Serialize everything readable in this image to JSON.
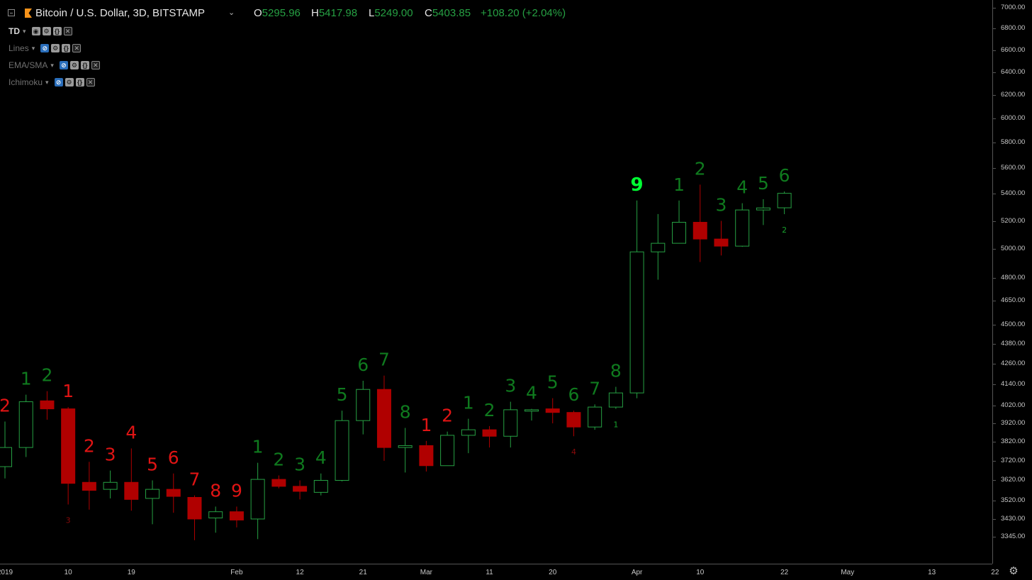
{
  "header": {
    "symbol": "Bitcoin / U.S. Dollar, 3D, BITSTAMP",
    "open_label": "O",
    "open": "5295.96",
    "high_label": "H",
    "high": "5417.98",
    "low_label": "L",
    "low": "5249.00",
    "close_label": "C",
    "close": "5403.85",
    "change": "+108.20 (+2.04%)"
  },
  "indicators": [
    {
      "name": "TD",
      "active": true
    },
    {
      "name": "Lines",
      "active": false
    },
    {
      "name": "EMA/SMA",
      "active": false
    },
    {
      "name": "Ichimoku",
      "active": false
    }
  ],
  "colors": {
    "up": "#26a043",
    "down": "#b00000",
    "count_up": "#0f7a1e",
    "count_down": "#e01414",
    "count_nine": "#00ff33"
  },
  "chart_data": {
    "type": "candlestick",
    "yscale": "log",
    "ylim": [
      3300,
      7050
    ],
    "y_ticks": [
      "7000.00",
      "6800.00",
      "6600.00",
      "6400.00",
      "6200.00",
      "6000.00",
      "5800.00",
      "5600.00",
      "5400.00",
      "5200.00",
      "5000.00",
      "4800.00",
      "4650.00",
      "4500.00",
      "4380.00",
      "4260.00",
      "4140.00",
      "4020.00",
      "3920.00",
      "3820.00",
      "3720.00",
      "3620.00",
      "3520.00",
      "3430.00",
      "3345.00"
    ],
    "x_labels": [
      "2019",
      "10",
      "19",
      "Feb",
      "12",
      "21",
      "Mar",
      "11",
      "20",
      "Apr",
      "10",
      "22",
      "May",
      "13",
      "22"
    ],
    "candles": [
      {
        "o": 3690,
        "h": 3930,
        "l": 3630,
        "c": 3790,
        "count": "2",
        "count_dir": "down"
      },
      {
        "o": 3790,
        "h": 4080,
        "l": 3740,
        "c": 4040,
        "count": "1",
        "count_dir": "up"
      },
      {
        "o": 4045,
        "h": 4100,
        "l": 3940,
        "c": 4000,
        "count": "2",
        "count_dir": "up"
      },
      {
        "o": 4000,
        "h": 4010,
        "l": 3500,
        "c": 3605,
        "count": "1",
        "count_dir": "down",
        "setup": "3",
        "setup_dir": "down"
      },
      {
        "o": 3610,
        "h": 3715,
        "l": 3475,
        "c": 3570,
        "count": "2",
        "count_dir": "down"
      },
      {
        "o": 3575,
        "h": 3670,
        "l": 3530,
        "c": 3610,
        "count": "3",
        "count_dir": "down"
      },
      {
        "o": 3610,
        "h": 3785,
        "l": 3470,
        "c": 3525,
        "count": "4",
        "count_dir": "down"
      },
      {
        "o": 3530,
        "h": 3620,
        "l": 3405,
        "c": 3575,
        "count": "5",
        "count_dir": "down"
      },
      {
        "o": 3575,
        "h": 3655,
        "l": 3460,
        "c": 3540,
        "count": "6",
        "count_dir": "down"
      },
      {
        "o": 3535,
        "h": 3545,
        "l": 3330,
        "c": 3430,
        "count": "7",
        "count_dir": "down"
      },
      {
        "o": 3435,
        "h": 3490,
        "l": 3365,
        "c": 3465,
        "count": "8",
        "count_dir": "down"
      },
      {
        "o": 3465,
        "h": 3490,
        "l": 3390,
        "c": 3425,
        "count": "9",
        "count_dir": "down"
      },
      {
        "o": 3430,
        "h": 3710,
        "l": 3335,
        "c": 3625,
        "count": "1",
        "count_dir": "up"
      },
      {
        "o": 3625,
        "h": 3645,
        "l": 3580,
        "c": 3590,
        "count": "2",
        "count_dir": "up"
      },
      {
        "o": 3590,
        "h": 3620,
        "l": 3525,
        "c": 3565,
        "count": "3",
        "count_dir": "up"
      },
      {
        "o": 3560,
        "h": 3655,
        "l": 3545,
        "c": 3620,
        "count": "4",
        "count_dir": "up"
      },
      {
        "o": 3620,
        "h": 3990,
        "l": 3615,
        "c": 3935,
        "count": "5",
        "count_dir": "up"
      },
      {
        "o": 3935,
        "h": 4160,
        "l": 3860,
        "c": 4110,
        "count": "6",
        "count_dir": "up"
      },
      {
        "o": 4110,
        "h": 4190,
        "l": 3720,
        "c": 3790,
        "count": "7",
        "count_dir": "up"
      },
      {
        "o": 3790,
        "h": 3895,
        "l": 3660,
        "c": 3800,
        "count": "8",
        "count_dir": "up"
      },
      {
        "o": 3800,
        "h": 3825,
        "l": 3665,
        "c": 3695,
        "count": "1",
        "count_dir": "down"
      },
      {
        "o": 3695,
        "h": 3875,
        "l": 3695,
        "c": 3855,
        "count": "2",
        "count_dir": "down"
      },
      {
        "o": 3855,
        "h": 3945,
        "l": 3760,
        "c": 3885,
        "count": "1",
        "count_dir": "up"
      },
      {
        "o": 3885,
        "h": 3905,
        "l": 3790,
        "c": 3850,
        "count": "2",
        "count_dir": "up"
      },
      {
        "o": 3850,
        "h": 4040,
        "l": 3790,
        "c": 3995,
        "count": "3",
        "count_dir": "up"
      },
      {
        "o": 3990,
        "h": 4000,
        "l": 3935,
        "c": 3995,
        "count": "4",
        "count_dir": "up"
      },
      {
        "o": 4000,
        "h": 4060,
        "l": 3920,
        "c": 3980,
        "count": "5",
        "count_dir": "up"
      },
      {
        "o": 3980,
        "h": 3990,
        "l": 3850,
        "c": 3900,
        "count": "6",
        "count_dir": "up",
        "setup": "4",
        "setup_dir": "down"
      },
      {
        "o": 3900,
        "h": 4025,
        "l": 3885,
        "c": 4010,
        "count": "7",
        "count_dir": "up"
      },
      {
        "o": 4010,
        "h": 4125,
        "l": 4000,
        "c": 4090,
        "count": "8",
        "count_dir": "up",
        "setup": "1",
        "setup_dir": "up"
      },
      {
        "o": 4090,
        "h": 5350,
        "l": 4060,
        "c": 4980,
        "count": "9",
        "count_dir": "nine"
      },
      {
        "o": 4980,
        "h": 5250,
        "l": 4790,
        "c": 5040,
        "count": "",
        "count_dir": "up"
      },
      {
        "o": 5040,
        "h": 5350,
        "l": 5040,
        "c": 5190,
        "count": "1",
        "count_dir": "up"
      },
      {
        "o": 5190,
        "h": 5470,
        "l": 4910,
        "c": 5070,
        "count": "2",
        "count_dir": "up"
      },
      {
        "o": 5070,
        "h": 5200,
        "l": 4955,
        "c": 5020,
        "count": "3",
        "count_dir": "up"
      },
      {
        "o": 5020,
        "h": 5330,
        "l": 5015,
        "c": 5280,
        "count": "4",
        "count_dir": "up"
      },
      {
        "o": 5280,
        "h": 5360,
        "l": 5170,
        "c": 5295,
        "count": "5",
        "count_dir": "up"
      },
      {
        "o": 5296,
        "h": 5418,
        "l": 5249,
        "c": 5404,
        "count": "6",
        "count_dir": "up",
        "setup": "2",
        "setup_dir": "up"
      }
    ]
  }
}
